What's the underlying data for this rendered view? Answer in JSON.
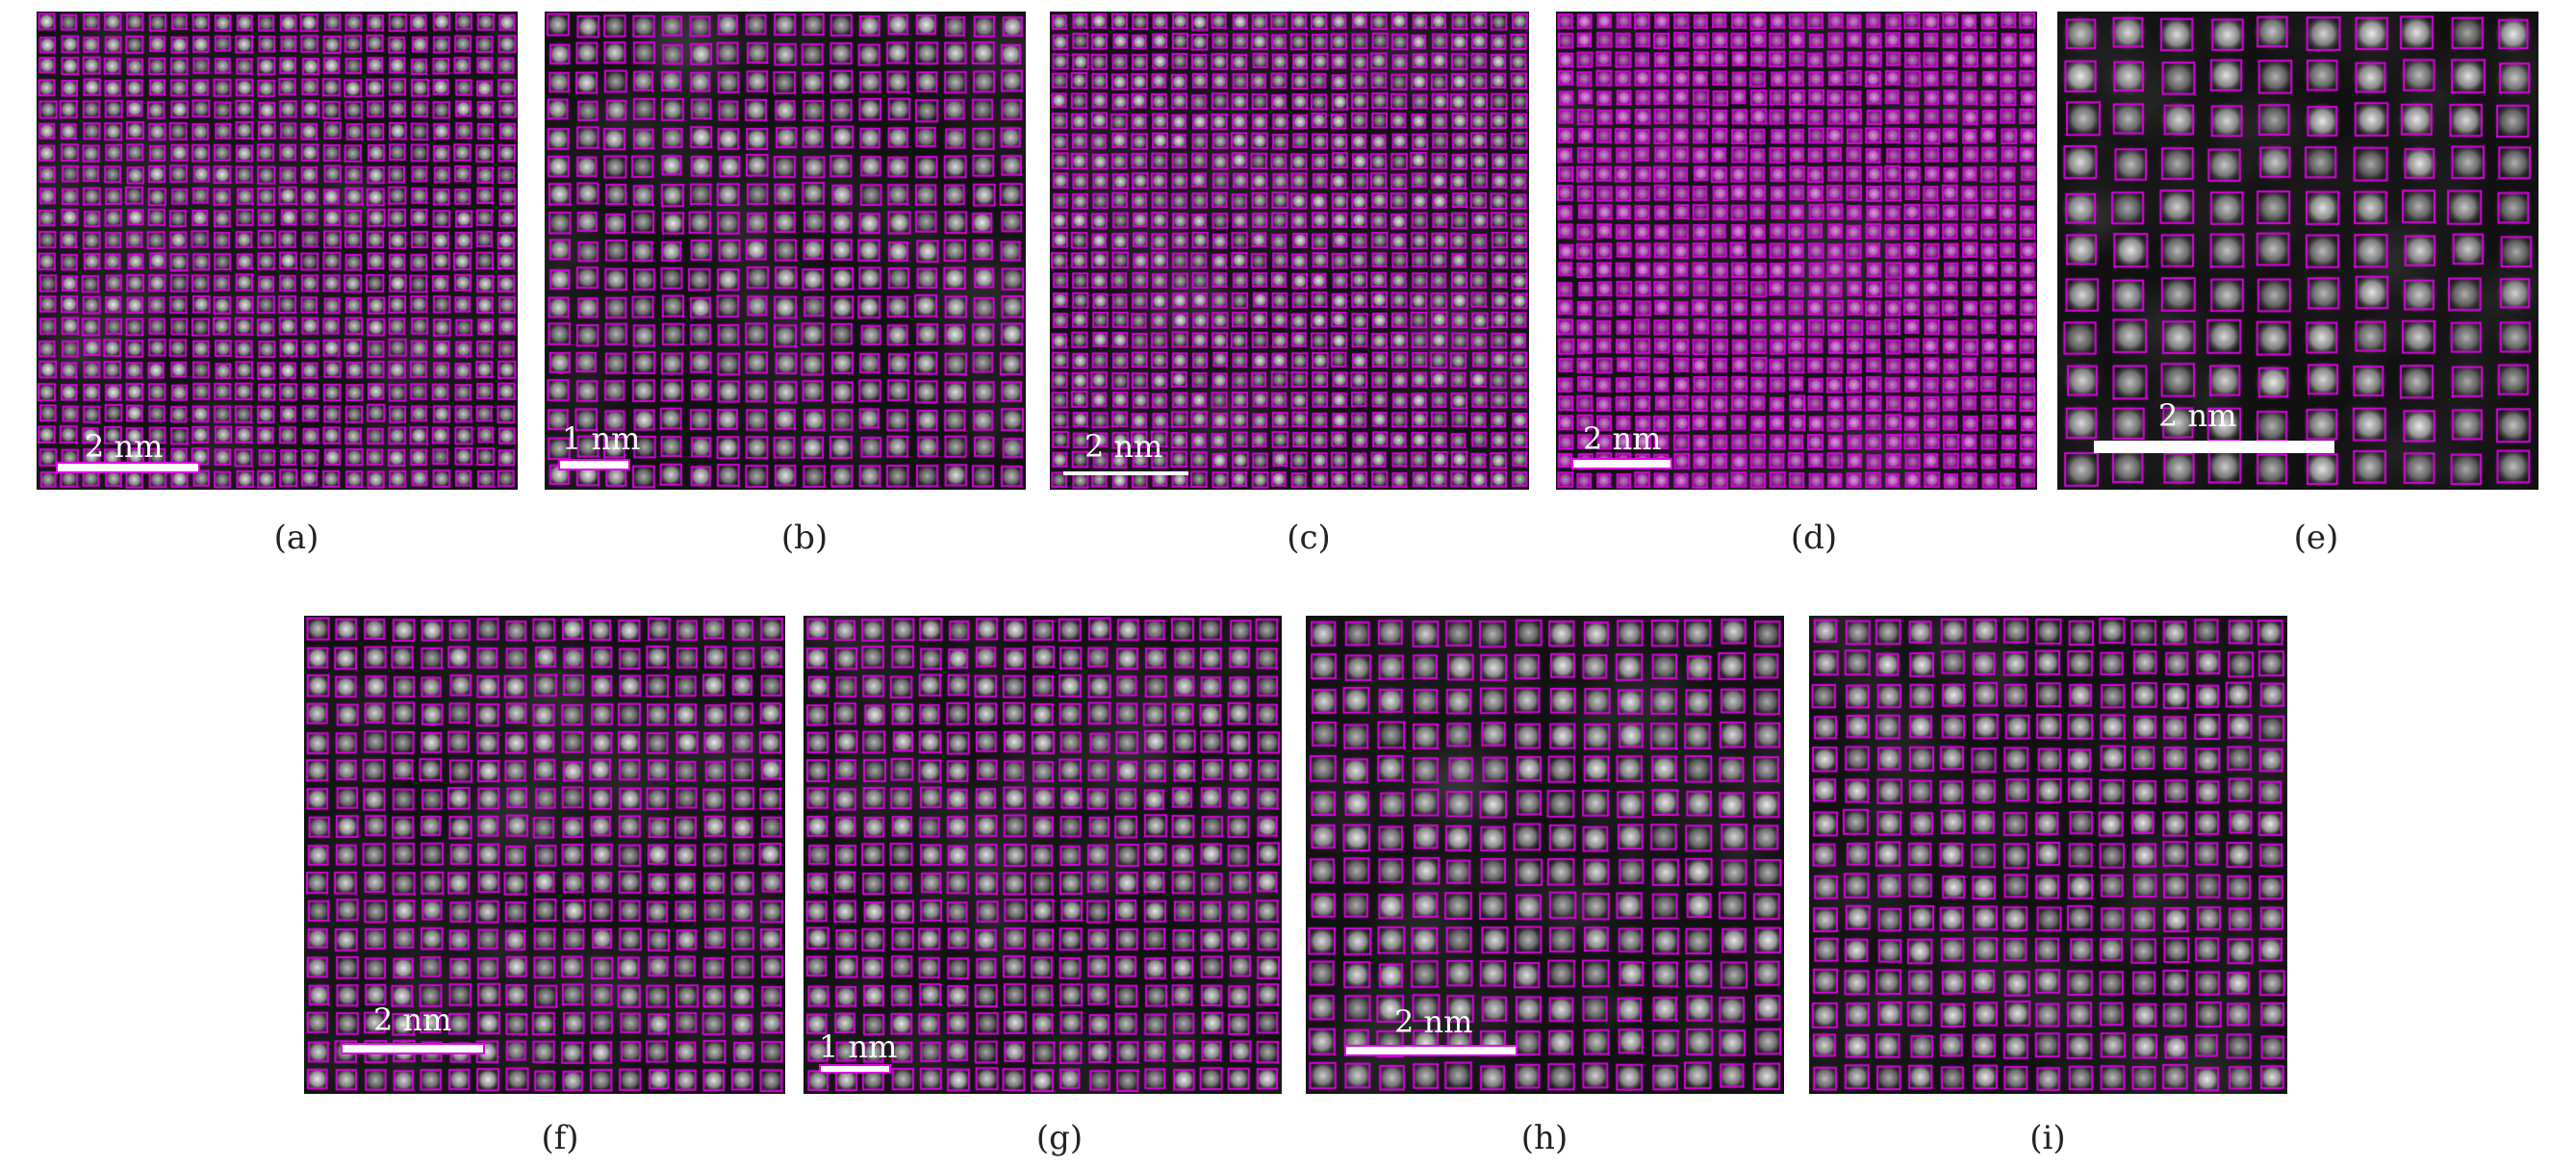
{
  "figure": {
    "marker_color": "#e100e6",
    "background": "#111111",
    "atom_color": "#dcdcdc",
    "panels": [
      {
        "id": "a",
        "caption": "(a)",
        "scale_label": "2 nm",
        "cols": 22,
        "rows": 22,
        "seed": 11,
        "tint": 0.0
      },
      {
        "id": "b",
        "caption": "(b)",
        "scale_label": "1 nm",
        "cols": 17,
        "rows": 17,
        "seed": 23,
        "tint": 0.0
      },
      {
        "id": "c",
        "caption": "(c)",
        "scale_label": "2 nm",
        "cols": 24,
        "rows": 24,
        "seed": 37,
        "tint": 0.0
      },
      {
        "id": "d",
        "caption": "(d)",
        "scale_label": "2 nm",
        "cols": 25,
        "rows": 25,
        "seed": 41,
        "tint": 0.35
      },
      {
        "id": "e",
        "caption": "(e)",
        "scale_label": "2 nm",
        "cols": 10,
        "rows": 11,
        "seed": 53,
        "tint": 0.0
      },
      {
        "id": "f",
        "caption": "(f)",
        "scale_label": "2 nm",
        "cols": 17,
        "rows": 17,
        "seed": 61,
        "tint": 0.0
      },
      {
        "id": "g",
        "caption": "(g)",
        "scale_label": "1 nm",
        "cols": 17,
        "rows": 17,
        "seed": 73,
        "tint": 0.0
      },
      {
        "id": "h",
        "caption": "(h)",
        "scale_label": "2 nm",
        "cols": 14,
        "rows": 14,
        "seed": 89,
        "tint": 0.0
      },
      {
        "id": "i",
        "caption": "(i)",
        "scale_label": "",
        "cols": 15,
        "rows": 15,
        "seed": 97,
        "tint": 0.0
      }
    ]
  }
}
